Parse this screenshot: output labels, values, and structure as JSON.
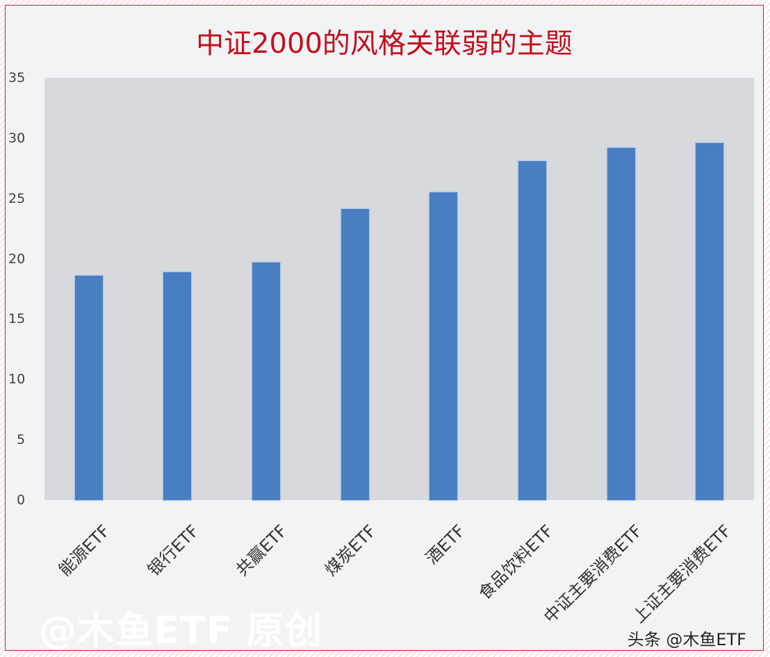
{
  "chart_data": {
    "type": "bar",
    "title": "中证2000的风格关联弱的主题",
    "xlabel": "",
    "ylabel": "",
    "categories": [
      "能源ETF",
      "银行ETF",
      "共赢ETF",
      "煤炭ETF",
      "酒ETF",
      "食品饮料ETF",
      "中证主要消费ETF",
      "上证主要消费ETF"
    ],
    "values": [
      18.6,
      18.9,
      19.7,
      24.1,
      25.5,
      28.1,
      29.2,
      29.6
    ],
    "ylim": [
      0,
      35
    ],
    "yticks": [
      "35",
      "30",
      "25",
      "20",
      "15",
      "10",
      "5",
      "0"
    ],
    "grid": false,
    "legend": null,
    "bar_color": "#4a7ec2",
    "plot_background": "#d8d9dc"
  },
  "watermark": "@木鱼ETF 原创",
  "source_label": "头条 @木鱼ETF",
  "colors": {
    "title": "#c40f1c",
    "border": "#c8202e"
  }
}
